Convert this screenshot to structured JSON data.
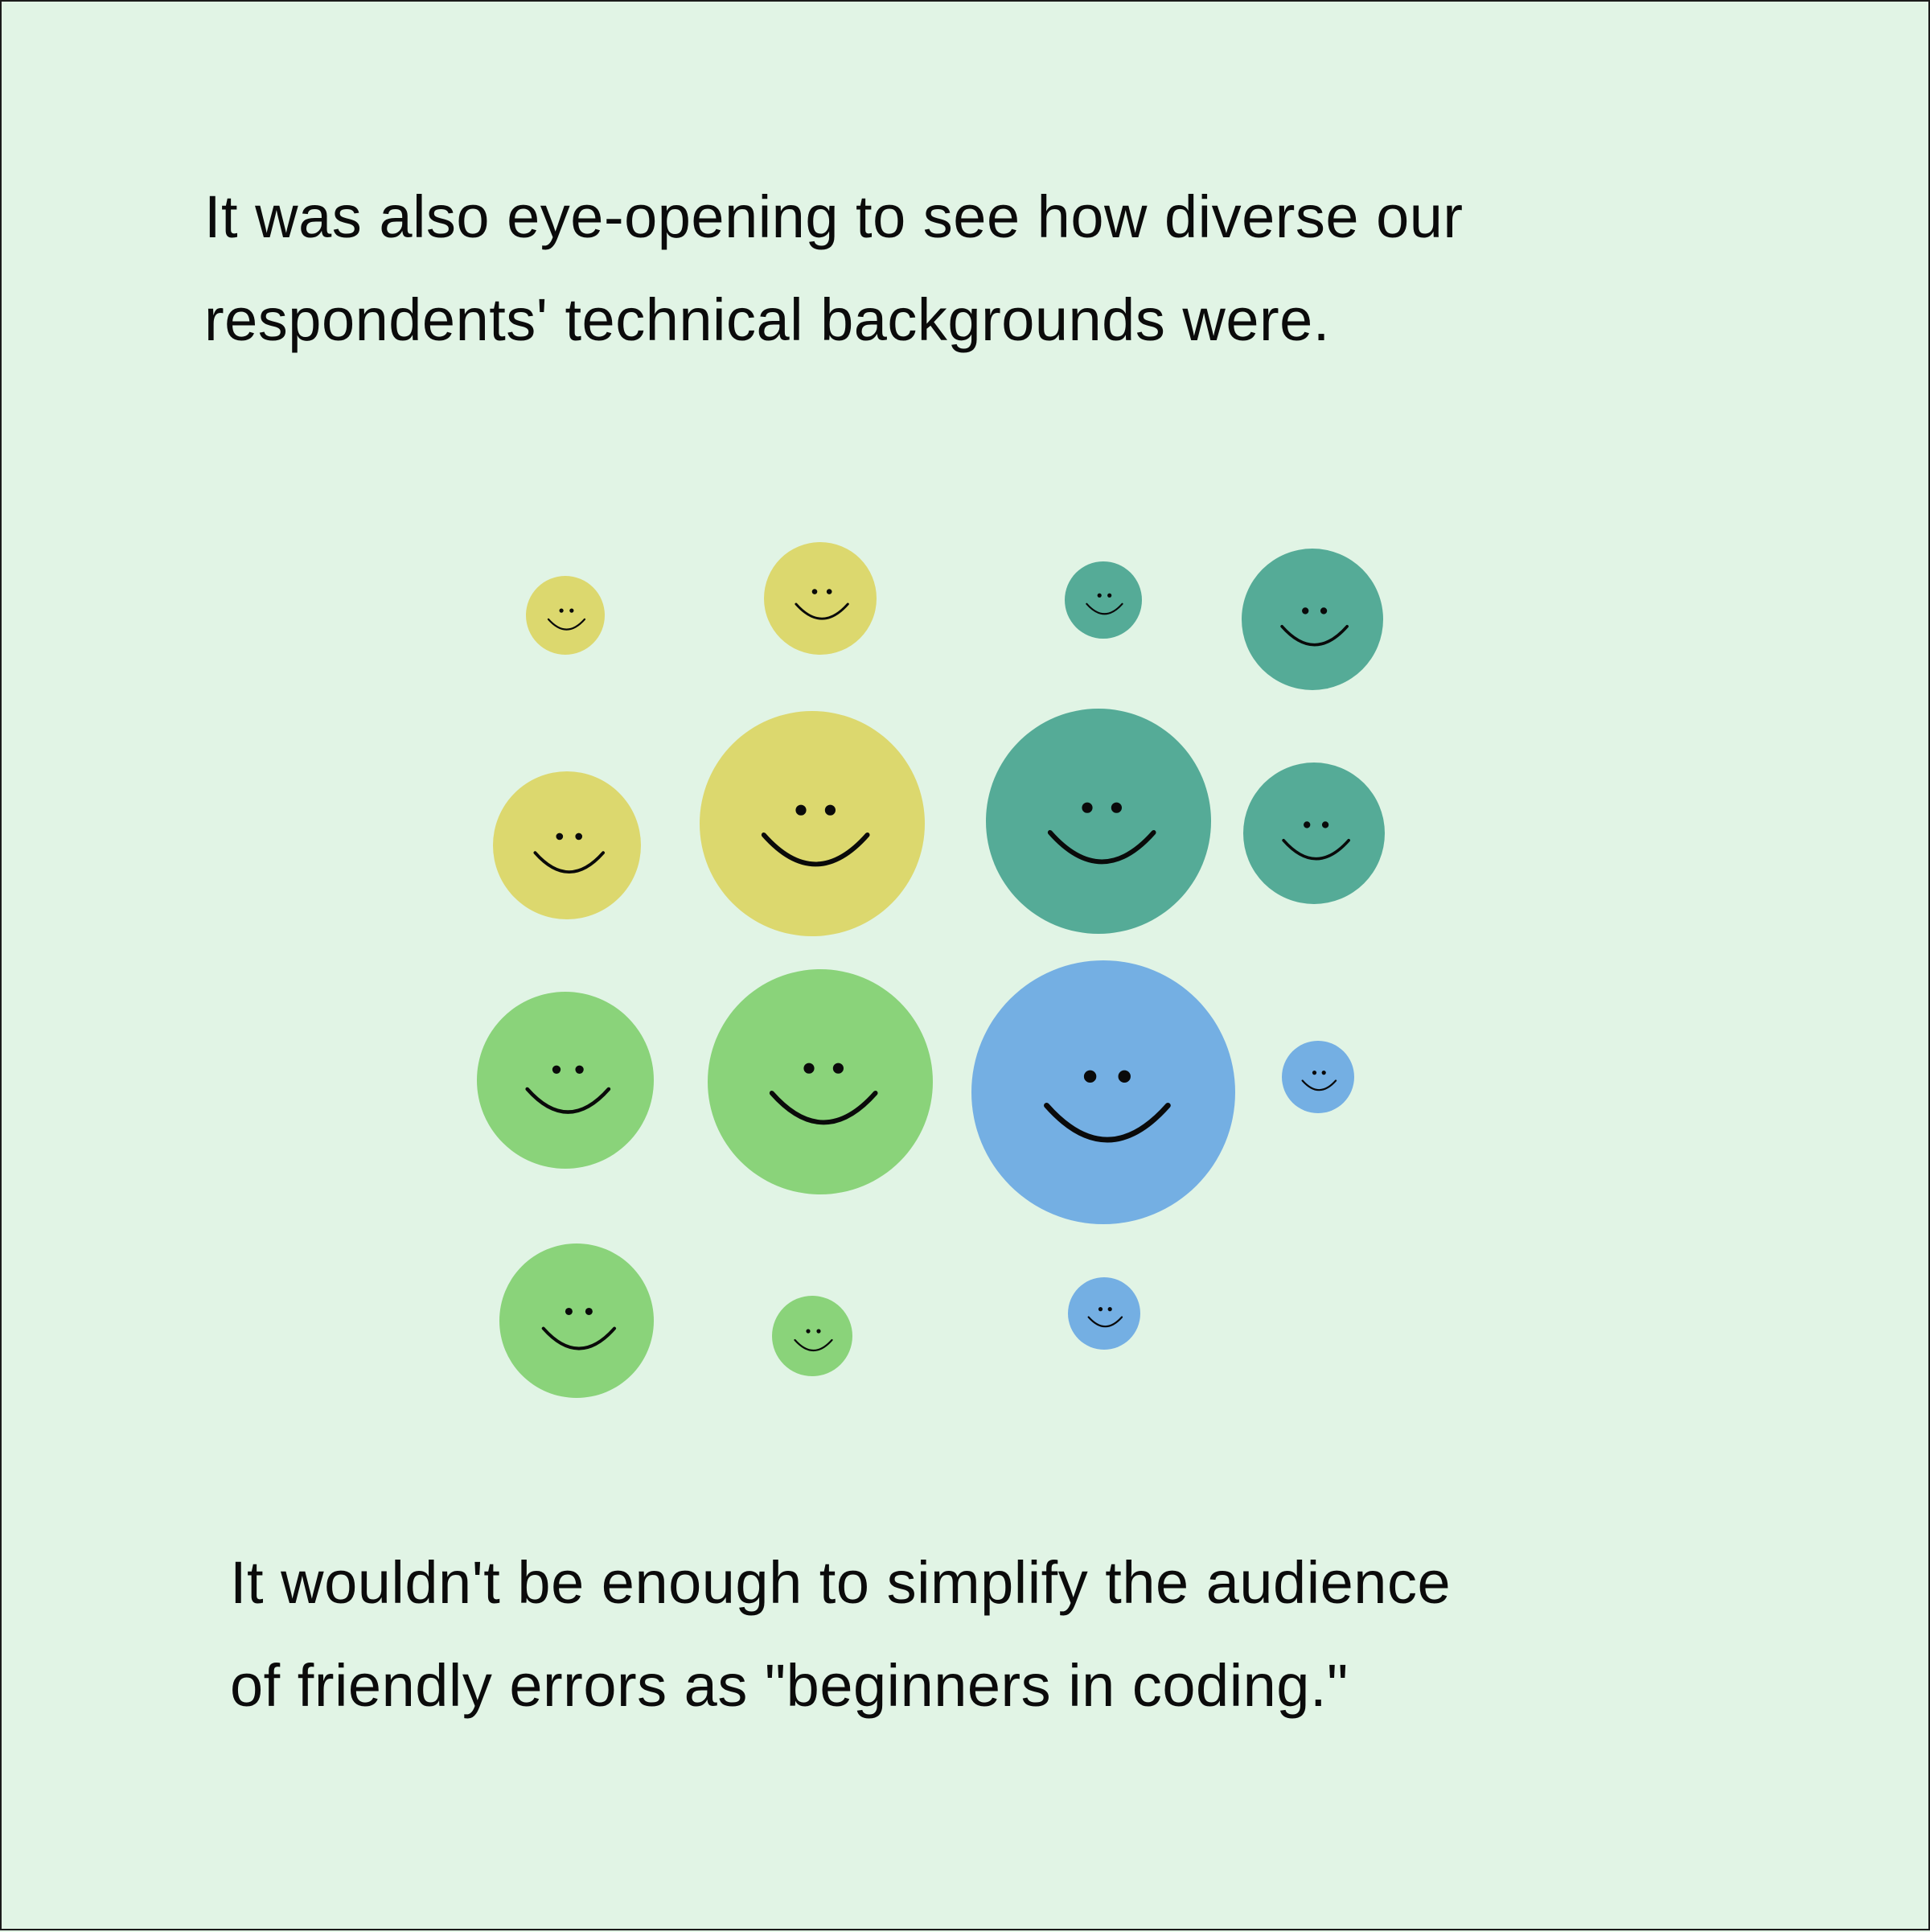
{
  "intro": {
    "lines": [
      "It was also eye-opening to see how diverse our",
      "respondents' technical backgrounds were."
    ]
  },
  "outro": {
    "lines": [
      "It wouldn't be enough to simplify the audience",
      "of friendly errors as \"beginners in coding.\""
    ]
  },
  "colors": {
    "background": "#e1f4e5",
    "border": "#1b1b1b",
    "text": "#0b0b0b",
    "feature": "#0a0a0a",
    "yellow": "#dcd86e",
    "teal": "#55ab97",
    "green": "#8ad37a",
    "blue": "#74afe3"
  },
  "faces": {
    "icon": "smiley-face-icon",
    "items": [
      {
        "color": "yellow"
      },
      {
        "color": "yellow"
      },
      {
        "color": "teal"
      },
      {
        "color": "teal"
      },
      {
        "color": "yellow"
      },
      {
        "color": "yellow"
      },
      {
        "color": "teal"
      },
      {
        "color": "teal"
      },
      {
        "color": "green"
      },
      {
        "color": "green"
      },
      {
        "color": "blue"
      },
      {
        "color": "blue"
      },
      {
        "color": "green"
      },
      {
        "color": "green"
      },
      {
        "color": "blue"
      }
    ]
  }
}
